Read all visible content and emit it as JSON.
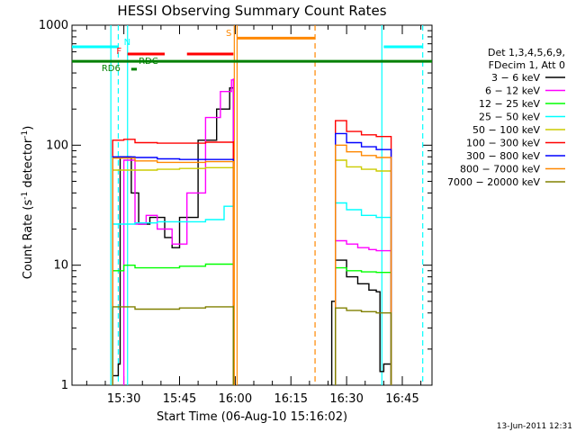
{
  "chart_data": {
    "type": "line",
    "title": "HESSI Observing Summary Count Rates",
    "xlabel": "Start Time (06-Aug-10 15:16:02)",
    "ylabel": "Count Rate (s⁻¹ detector⁻¹)",
    "ylabel_main": "Count Rate (s",
    "ylabel_sup1": "-1",
    "ylabel_mid": " detector",
    "ylabel_sup2": "-1",
    "ylabel_end": ")",
    "yscale": "log",
    "ylim": [
      1,
      1000
    ],
    "xlim": [
      "15:16:02",
      "16:53:00"
    ],
    "x_ticks": [
      "15:30",
      "15:45",
      "16:00",
      "16:15",
      "16:30",
      "16:45"
    ],
    "y_ticks": [
      "1",
      "10",
      "100",
      "1000"
    ],
    "footer_date": "13-Jun-2011 12:31",
    "legend": {
      "header": [
        "Det 1,3,4,5,6,9,",
        "FDecim 1, Att 0"
      ],
      "placement": "right",
      "entries": [
        {
          "label": "3 − 6 keV",
          "color": "#000000"
        },
        {
          "label": "6 − 12 keV",
          "color": "#ff00ff"
        },
        {
          "label": "12 − 25 keV",
          "color": "#00ff00"
        },
        {
          "label": "25 − 50 keV",
          "color": "#00ffff"
        },
        {
          "label": "50 − 100 keV",
          "color": "#cccc00"
        },
        {
          "label": "100 − 300 keV",
          "color": "#ff0000"
        },
        {
          "label": "300 − 800 keV",
          "color": "#0000ff"
        },
        {
          "label": "800 − 7000 keV",
          "color": "#ff8800"
        },
        {
          "label": "7000 − 20000 keV",
          "color": "#808000"
        }
      ]
    },
    "flags": [
      {
        "label": "N",
        "color": "#00ffff"
      },
      {
        "label": "F",
        "color": "#ff0000"
      },
      {
        "label": "RDC",
        "color": "#008000"
      },
      {
        "label": "RD6",
        "color": "#008000"
      },
      {
        "label": "S",
        "color": "#ff8800"
      }
    ],
    "series": [
      {
        "band": "3 - 6 keV",
        "color": "#000000",
        "segments": [
          [
            [
              "15:27:00",
              1.2
            ],
            [
              "15:28:30",
              1.5
            ],
            [
              "15:29:00",
              80
            ],
            [
              "15:32:00",
              40
            ],
            [
              "15:34:00",
              22
            ],
            [
              "15:37:00",
              25
            ],
            [
              "15:41:00",
              17
            ],
            [
              "15:43:00",
              14
            ],
            [
              "15:45:00",
              25
            ],
            [
              "15:50:00",
              110
            ],
            [
              "15:55:00",
              200
            ],
            [
              "15:58:30",
              300
            ],
            [
              "15:59:30",
              310
            ]
          ],
          [
            [
              "16:26:00",
              5
            ],
            [
              "16:27:00",
              11
            ],
            [
              "16:30:00",
              8
            ],
            [
              "16:33:00",
              7
            ],
            [
              "16:36:00",
              6.2
            ],
            [
              "16:38:00",
              6
            ],
            [
              "16:39:00",
              1.3
            ],
            [
              "16:40:00",
              1.5
            ],
            [
              "16:42:00",
              1.3
            ]
          ]
        ]
      },
      {
        "band": "6 - 12 keV",
        "color": "#ff00ff",
        "segments": [
          [
            [
              "15:30:00",
              75
            ],
            [
              "15:33:00",
              22
            ],
            [
              "15:36:00",
              26
            ],
            [
              "15:39:00",
              20
            ],
            [
              "15:43:00",
              15
            ],
            [
              "15:47:00",
              40
            ],
            [
              "15:52:00",
              170
            ],
            [
              "15:56:00",
              280
            ],
            [
              "15:59:00",
              350
            ],
            [
              "15:59:30",
              360
            ]
          ],
          [
            [
              "16:27:00",
              16
            ],
            [
              "16:30:00",
              15
            ],
            [
              "16:33:00",
              14
            ],
            [
              "16:36:00",
              13.5
            ],
            [
              "16:38:00",
              13.2
            ],
            [
              "16:42:00",
              13
            ]
          ]
        ]
      },
      {
        "band": "12 - 25 keV",
        "color": "#00ff00",
        "segments": [
          [
            [
              "15:27:00",
              9
            ],
            [
              "15:30:00",
              10
            ],
            [
              "15:33:00",
              9.5
            ],
            [
              "15:39:00",
              9.5
            ],
            [
              "15:45:00",
              9.8
            ],
            [
              "15:52:00",
              10.2
            ],
            [
              "15:59:30",
              10.5
            ]
          ],
          [
            [
              "16:27:00",
              9.5
            ],
            [
              "16:30:00",
              9
            ],
            [
              "16:34:00",
              8.8
            ],
            [
              "16:38:00",
              8.7
            ],
            [
              "16:42:00",
              8.6
            ]
          ]
        ]
      },
      {
        "band": "25 - 50 keV",
        "color": "#00ffff",
        "segments": [
          [
            [
              "15:27:00",
              22
            ],
            [
              "15:33:00",
              22.5
            ],
            [
              "15:39:00",
              23
            ],
            [
              "15:45:00",
              23
            ],
            [
              "15:52:00",
              24
            ],
            [
              "15:57:00",
              31
            ],
            [
              "15:59:30",
              32
            ]
          ],
          [
            [
              "16:27:00",
              33
            ],
            [
              "16:30:00",
              29
            ],
            [
              "16:34:00",
              26
            ],
            [
              "16:38:00",
              25
            ],
            [
              "16:42:00",
              24
            ]
          ]
        ]
      },
      {
        "band": "50 - 100 keV",
        "color": "#cccc00",
        "segments": [
          [
            [
              "15:27:00",
              62
            ],
            [
              "15:33:00",
              62
            ],
            [
              "15:39:00",
              63
            ],
            [
              "15:45:00",
              64
            ],
            [
              "15:52:00",
              65
            ],
            [
              "15:59:30",
              66
            ]
          ],
          [
            [
              "16:27:00",
              75
            ],
            [
              "16:30:00",
              66
            ],
            [
              "16:34:00",
              63
            ],
            [
              "16:38:00",
              61
            ],
            [
              "16:42:00",
              60
            ]
          ]
        ]
      },
      {
        "band": "100 - 300 keV",
        "color": "#ff0000",
        "segments": [
          [
            [
              "15:27:00",
              110
            ],
            [
              "15:30:00",
              112
            ],
            [
              "15:33:00",
              105
            ],
            [
              "15:39:00",
              104
            ],
            [
              "15:45:00",
              104
            ],
            [
              "15:52:00",
              106
            ],
            [
              "15:59:30",
              108
            ]
          ],
          [
            [
              "16:27:00",
              160
            ],
            [
              "16:30:00",
              130
            ],
            [
              "16:34:00",
              122
            ],
            [
              "16:38:00",
              118
            ],
            [
              "16:42:00",
              115
            ]
          ]
        ]
      },
      {
        "band": "300 - 800 keV",
        "color": "#0000ff",
        "segments": [
          [
            [
              "15:27:00",
              80
            ],
            [
              "15:33:00",
              79
            ],
            [
              "15:39:00",
              77
            ],
            [
              "15:45:00",
              76
            ],
            [
              "15:52:00",
              76
            ],
            [
              "15:59:30",
              77
            ]
          ],
          [
            [
              "16:27:00",
              125
            ],
            [
              "16:30:00",
              105
            ],
            [
              "16:34:00",
              97
            ],
            [
              "16:38:00",
              92
            ],
            [
              "16:42:00",
              90
            ]
          ]
        ]
      },
      {
        "band": "800 - 7000 keV",
        "color": "#ff8800",
        "segments": [
          [
            [
              "15:27:00",
              78
            ],
            [
              "15:33:00",
              74
            ],
            [
              "15:39:00",
              72
            ],
            [
              "15:45:00",
              72
            ],
            [
              "15:52:00",
              73
            ],
            [
              "15:59:30",
              73
            ]
          ],
          [
            [
              "16:27:00",
              100
            ],
            [
              "16:30:00",
              88
            ],
            [
              "16:34:00",
              82
            ],
            [
              "16:38:00",
              79
            ],
            [
              "16:42:00",
              78
            ]
          ]
        ]
      },
      {
        "band": "7000 - 20000 keV",
        "color": "#808000",
        "segments": [
          [
            [
              "15:27:00",
              4.5
            ],
            [
              "15:33:00",
              4.3
            ],
            [
              "15:39:00",
              4.3
            ],
            [
              "15:45:00",
              4.4
            ],
            [
              "15:52:00",
              4.5
            ],
            [
              "15:59:30",
              4.6
            ]
          ],
          [
            [
              "16:27:00",
              4.4
            ],
            [
              "16:30:00",
              4.2
            ],
            [
              "16:34:00",
              4.1
            ],
            [
              "16:38:00",
              4.0
            ],
            [
              "16:42:00",
              4.0
            ]
          ]
        ]
      }
    ]
  }
}
